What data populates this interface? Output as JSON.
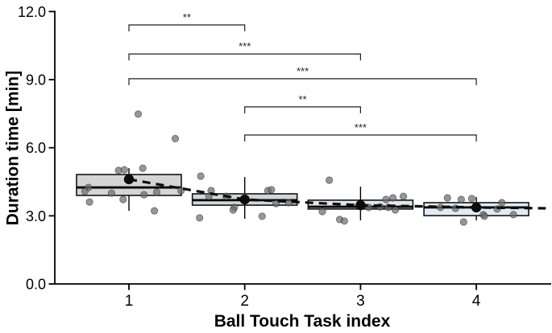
{
  "figure": {
    "background": "#ffffff",
    "axis_color": "#000000",
    "bracket_color": "#1f1f1f"
  },
  "chart_data": {
    "type": "boxplot",
    "title": "",
    "xlabel": "Ball Touch Task index",
    "ylabel": "Duration time [min]",
    "xtick_labels": [
      "1",
      "2",
      "3",
      "4"
    ],
    "x_categories": [
      1,
      2,
      3,
      4
    ],
    "yticks": [
      0,
      3,
      6,
      9,
      12
    ],
    "ytick_labels": [
      "0.0",
      "3.0",
      "6.0",
      "9.0",
      "12.0"
    ],
    "ylim": [
      0,
      12
    ],
    "grid": false,
    "legend": null,
    "point_color": "#6e6e6e",
    "point_edge_color": "#2f2f2f",
    "boxes": [
      {
        "x": 1,
        "q1": 3.9,
        "median": 4.25,
        "q3": 4.82,
        "whisker_low": 3.22,
        "whisker_high": 5.1,
        "mean": 4.61,
        "fill": "#d5d5d5"
      },
      {
        "x": 2,
        "q1": 3.47,
        "median": 3.69,
        "q3": 3.97,
        "whisker_low": 2.87,
        "whisker_high": 4.71,
        "mean": 3.72,
        "fill": "#d2d6d9"
      },
      {
        "x": 3,
        "q1": 3.3,
        "median": 3.4,
        "q3": 3.69,
        "whisker_low": 2.8,
        "whisker_high": 4.29,
        "mean": 3.47,
        "fill": "#dfe6ec"
      },
      {
        "x": 4,
        "q1": 3.01,
        "median": 3.37,
        "q3": 3.58,
        "whisker_low": 2.8,
        "whisker_high": 3.83,
        "mean": 3.37,
        "fill": "#e2ebf3"
      }
    ],
    "jitter_points": [
      {
        "x": 1.08,
        "y": 7.48
      },
      {
        "x": 1.4,
        "y": 6.4
      },
      {
        "x": 0.91,
        "y": 5.0
      },
      {
        "x": 0.96,
        "y": 5.03
      },
      {
        "x": 1.12,
        "y": 5.1
      },
      {
        "x": 0.65,
        "y": 4.25
      },
      {
        "x": 0.62,
        "y": 4.08
      },
      {
        "x": 0.85,
        "y": 4.0
      },
      {
        "x": 1.24,
        "y": 4.04
      },
      {
        "x": 1.13,
        "y": 3.93
      },
      {
        "x": 0.95,
        "y": 3.72
      },
      {
        "x": 0.66,
        "y": 3.61
      },
      {
        "x": 1.22,
        "y": 3.22
      },
      {
        "x": 1.45,
        "y": 4.11
      },
      {
        "x": 1.62,
        "y": 4.75
      },
      {
        "x": 1.71,
        "y": 4.11
      },
      {
        "x": 1.69,
        "y": 3.86
      },
      {
        "x": 1.84,
        "y": 3.86
      },
      {
        "x": 2.2,
        "y": 4.11
      },
      {
        "x": 2.23,
        "y": 4.15
      },
      {
        "x": 1.91,
        "y": 3.37
      },
      {
        "x": 1.9,
        "y": 3.26
      },
      {
        "x": 2.27,
        "y": 3.54
      },
      {
        "x": 2.38,
        "y": 3.58
      },
      {
        "x": 1.61,
        "y": 2.91
      },
      {
        "x": 2.15,
        "y": 2.98
      },
      {
        "x": 2.73,
        "y": 4.57
      },
      {
        "x": 2.67,
        "y": 3.19
      },
      {
        "x": 2.82,
        "y": 2.84
      },
      {
        "x": 2.86,
        "y": 2.77
      },
      {
        "x": 3.07,
        "y": 3.37
      },
      {
        "x": 3.17,
        "y": 3.4
      },
      {
        "x": 3.22,
        "y": 3.72
      },
      {
        "x": 3.24,
        "y": 3.37
      },
      {
        "x": 3.28,
        "y": 3.79
      },
      {
        "x": 3.3,
        "y": 3.26
      },
      {
        "x": 3.37,
        "y": 3.86
      },
      {
        "x": 3.75,
        "y": 3.79
      },
      {
        "x": 3.87,
        "y": 3.72
      },
      {
        "x": 3.96,
        "y": 3.76
      },
      {
        "x": 3.69,
        "y": 3.37
      },
      {
        "x": 3.82,
        "y": 3.33
      },
      {
        "x": 4.22,
        "y": 3.58
      },
      {
        "x": 4.18,
        "y": 3.3
      },
      {
        "x": 4.06,
        "y": 3.05
      },
      {
        "x": 4.07,
        "y": 2.98
      },
      {
        "x": 4.32,
        "y": 3.05
      },
      {
        "x": 3.89,
        "y": 2.73
      }
    ],
    "trend_line": {
      "style": "dashed",
      "color": "#0d0d0d",
      "points": [
        [
          1,
          4.61
        ],
        [
          2,
          3.72
        ],
        [
          3,
          3.47
        ],
        [
          4,
          3.37
        ],
        [
          4.6,
          3.33
        ]
      ]
    },
    "significance_brackets": [
      {
        "x1": 1,
        "x2": 2,
        "y": 11.41,
        "label": "**"
      },
      {
        "x1": 1,
        "x2": 3,
        "y": 10.13,
        "label": "***"
      },
      {
        "x1": 1,
        "x2": 4,
        "y": 9.04,
        "label": "***"
      },
      {
        "x1": 2,
        "x2": 3,
        "y": 7.8,
        "label": "**"
      },
      {
        "x1": 2,
        "x2": 4,
        "y": 6.56,
        "label": "***"
      }
    ]
  }
}
